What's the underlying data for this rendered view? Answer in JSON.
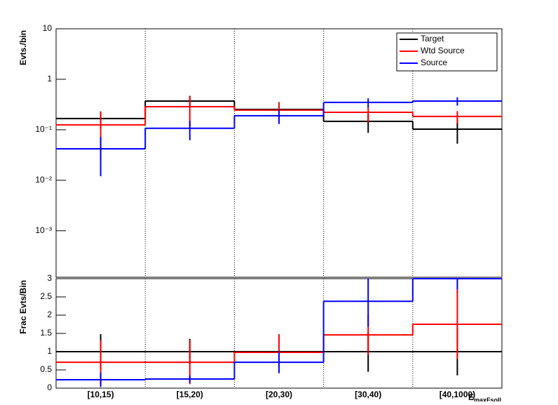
{
  "chart_data": [
    {
      "type": "step",
      "y_label": "Evts./bin",
      "log_y": true,
      "ylim": [
        0.00012,
        10
      ],
      "yticks": [
        {
          "value": 10,
          "label": "10"
        },
        {
          "value": 1,
          "label": "1"
        },
        {
          "value": 0.1,
          "label": "10⁻¹"
        },
        {
          "value": 0.01,
          "label": "10⁻²"
        },
        {
          "value": 0.001,
          "label": "10⁻³"
        }
      ],
      "grid_x": true,
      "legend": "top-right",
      "series": [
        {
          "name": "Target",
          "color": "#000000",
          "values": [
            0.167,
            0.37,
            0.253,
            0.147,
            0.103
          ],
          "errors": [
            0.063,
            0.1,
            0.06,
            0.06,
            0.05
          ]
        },
        {
          "name": "Wtd Source",
          "color": "#ff0000",
          "values": [
            0.125,
            0.287,
            0.245,
            0.222,
            0.184
          ],
          "errors": [
            0.1,
            0.17,
            0.11,
            0.08,
            0.05
          ]
        },
        {
          "name": "Source",
          "color": "#0000ff",
          "values": [
            0.042,
            0.107,
            0.19,
            0.348,
            0.37
          ],
          "errors": [
            0.03,
            0.045,
            0.06,
            0.07,
            0.07
          ]
        }
      ]
    },
    {
      "type": "step",
      "y_label": "Frac Evts/Bin",
      "x_label": "E",
      "x_label_sub": "maxFsoll",
      "log_y": false,
      "ylim": [
        0,
        3
      ],
      "yticks": [
        0,
        0.5,
        1,
        1.5,
        2,
        2.5,
        3
      ],
      "grid_x": true,
      "categories": [
        "[10,15)",
        "[15,20)",
        "[20,30)",
        "[30,40)",
        "[40,1000)"
      ],
      "series": [
        {
          "color": "#000000",
          "values": [
            1,
            1,
            1,
            1,
            1
          ],
          "errors": [
            0.48,
            0.35,
            0.3,
            0.55,
            0.65
          ]
        },
        {
          "color": "#ff0000",
          "values": [
            0.71,
            0.71,
            0.98,
            1.46,
            1.75
          ],
          "errors": [
            0.6,
            0.6,
            0.5,
            0.55,
            0.95
          ]
        },
        {
          "color": "#0000ff",
          "values": [
            0.23,
            0.25,
            0.71,
            2.38,
            3.0
          ],
          "errors": [
            0.2,
            0.1,
            0.3,
            0.7,
            0.3
          ]
        }
      ]
    }
  ]
}
